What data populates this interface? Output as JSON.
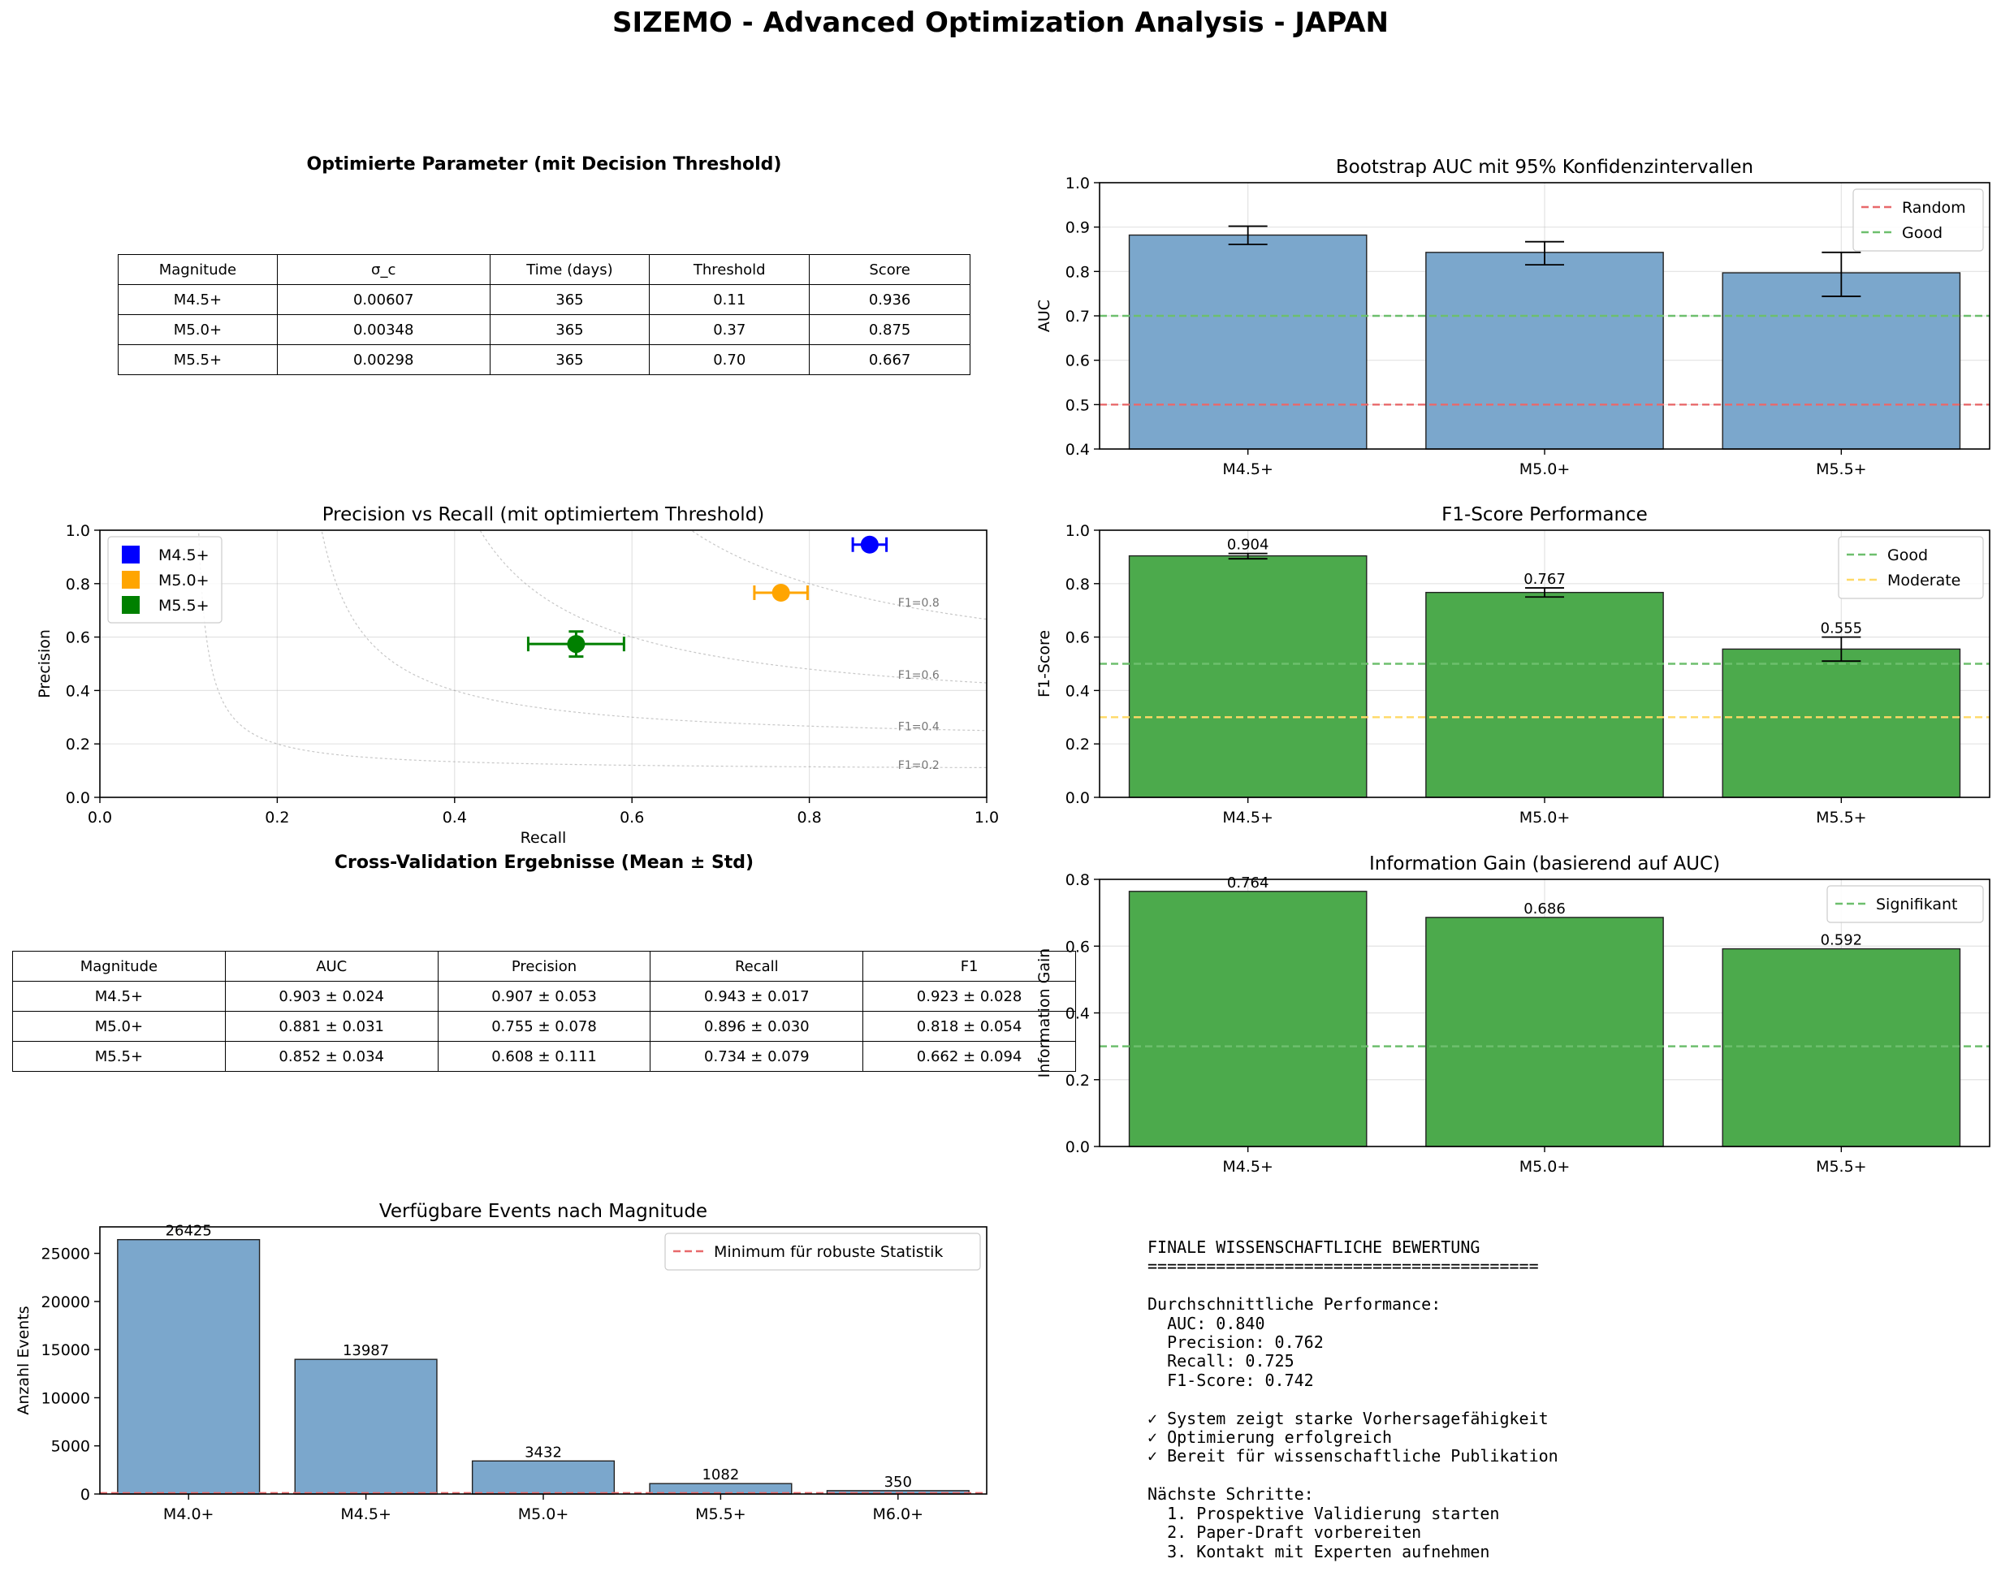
{
  "figure": {
    "title": "SIZEMO - Advanced Optimization Analysis - JAPAN"
  },
  "params_table": {
    "title": "Optimierte Parameter (mit Decision Threshold)",
    "headers": [
      "Magnitude",
      "σ_c",
      "Time (days)",
      "Threshold",
      "Score"
    ],
    "rows": [
      [
        "M4.5+",
        "0.00607",
        "365",
        "0.11",
        "0.936"
      ],
      [
        "M5.0+",
        "0.00348",
        "365",
        "0.37",
        "0.875"
      ],
      [
        "M5.5+",
        "0.00298",
        "365",
        "0.70",
        "0.667"
      ]
    ]
  },
  "cv_table": {
    "title": "Cross-Validation Ergebnisse (Mean ± Std)",
    "headers": [
      "Magnitude",
      "AUC",
      "Precision",
      "Recall",
      "F1"
    ],
    "rows": [
      [
        "M4.5+",
        "0.903 ± 0.024",
        "0.907 ± 0.053",
        "0.943 ± 0.017",
        "0.923 ± 0.028"
      ],
      [
        "M5.0+",
        "0.881 ± 0.031",
        "0.755 ± 0.078",
        "0.896 ± 0.030",
        "0.818 ± 0.054"
      ],
      [
        "M5.5+",
        "0.852 ± 0.034",
        "0.608 ± 0.111",
        "0.734 ± 0.079",
        "0.662 ± 0.094"
      ]
    ]
  },
  "chart_data": [
    {
      "id": "auc",
      "type": "bar",
      "title": "Bootstrap AUC mit 95% Konfidenzintervallen",
      "ylabel": "AUC",
      "categories": [
        "M4.5+",
        "M5.0+",
        "M5.5+"
      ],
      "values": [
        0.882,
        0.843,
        0.797
      ],
      "error_low": [
        0.861,
        0.815,
        0.744
      ],
      "error_high": [
        0.902,
        0.867,
        0.843
      ],
      "ylim": [
        0.4,
        1.0
      ],
      "yticks": [
        "0.4",
        "0.5",
        "0.6",
        "0.7",
        "0.8",
        "0.9",
        "1.0"
      ],
      "bar_color": "#7ba7cc",
      "reference_lines": [
        {
          "label": "Random",
          "y": 0.5,
          "color": "#e8696b"
        },
        {
          "label": "Good",
          "y": 0.7,
          "color": "#6dbf6d"
        }
      ],
      "legend": "top-right",
      "grid": true
    },
    {
      "id": "pr",
      "type": "scatter",
      "title": "Precision vs Recall (mit optimiertem Threshold)",
      "xlabel": "Recall",
      "ylabel": "Precision",
      "xlim": [
        0,
        1
      ],
      "ylim": [
        0,
        1
      ],
      "xticks": [
        "0.0",
        "0.2",
        "0.4",
        "0.6",
        "0.8",
        "1.0"
      ],
      "yticks": [
        "0.0",
        "0.2",
        "0.4",
        "0.6",
        "0.8",
        "1.0"
      ],
      "points": [
        {
          "name": "M4.5+",
          "x": 0.868,
          "y": 0.946,
          "xerr": 0.019,
          "yerr": 0.008,
          "color": "#0000ff"
        },
        {
          "name": "M5.0+",
          "x": 0.768,
          "y": 0.766,
          "xerr": 0.03,
          "yerr": 0.012,
          "color": "#ffa500"
        },
        {
          "name": "M5.5+",
          "x": 0.537,
          "y": 0.574,
          "xerr": 0.054,
          "yerr": 0.047,
          "color": "#008000"
        }
      ],
      "f1_contours": [
        {
          "label": "F1=0.8",
          "f1": 0.8
        },
        {
          "label": "F1=0.6",
          "f1": 0.6
        },
        {
          "label": "F1=0.4",
          "f1": 0.4
        },
        {
          "label": "F1=0.2",
          "f1": 0.2
        }
      ],
      "legend": "top-left",
      "grid": true
    },
    {
      "id": "f1",
      "type": "bar",
      "title": "F1-Score Performance",
      "ylabel": "F1-Score",
      "categories": [
        "M4.5+",
        "M5.0+",
        "M5.5+"
      ],
      "values": [
        0.904,
        0.767,
        0.555
      ],
      "value_labels": [
        "0.904",
        "0.767",
        "0.555"
      ],
      "error_low": [
        0.893,
        0.75,
        0.51
      ],
      "error_high": [
        0.913,
        0.784,
        0.6
      ],
      "ylim": [
        0,
        1.0
      ],
      "yticks": [
        "0.0",
        "0.2",
        "0.4",
        "0.6",
        "0.8",
        "1.0"
      ],
      "bar_color": "#4caa4c",
      "reference_lines": [
        {
          "label": "Good",
          "y": 0.5,
          "color": "#6dbf6d"
        },
        {
          "label": "Moderate",
          "y": 0.3,
          "color": "#ffd966"
        }
      ],
      "legend": "top-right",
      "grid": true
    },
    {
      "id": "ig",
      "type": "bar",
      "title": "Information Gain (basierend auf AUC)",
      "ylabel": "Information Gain",
      "categories": [
        "M4.5+",
        "M5.0+",
        "M5.5+"
      ],
      "values": [
        0.764,
        0.686,
        0.592
      ],
      "value_labels": [
        "0.764",
        "0.686",
        "0.592"
      ],
      "ylim": [
        0,
        0.8
      ],
      "yticks": [
        "0.0",
        "0.2",
        "0.4",
        "0.6",
        "0.8"
      ],
      "bar_color": "#4caa4c",
      "reference_lines": [
        {
          "label": "Signifikant",
          "y": 0.3,
          "color": "#6dbf6d"
        }
      ],
      "legend": "top-right",
      "grid": true
    },
    {
      "id": "events",
      "type": "bar",
      "title": "Verfügbare Events nach Magnitude",
      "ylabel": "Anzahl Events",
      "categories": [
        "M4.0+",
        "M4.5+",
        "M5.0+",
        "M5.5+",
        "M6.0+"
      ],
      "values": [
        26425,
        13987,
        3432,
        1082,
        350
      ],
      "value_labels": [
        "26425",
        "13987",
        "3432",
        "1082",
        "350"
      ],
      "ylim": [
        0,
        27750
      ],
      "yticks": [
        "0",
        "5000",
        "10000",
        "15000",
        "20000",
        "25000"
      ],
      "ytick_values": [
        0,
        5000,
        10000,
        15000,
        20000,
        25000
      ],
      "bar_color": "#7ba7cc",
      "reference_lines": [
        {
          "label": "Minimum für robuste Statistik",
          "y": 100,
          "color": "#e8696b"
        }
      ],
      "legend": "top-right",
      "grid": false
    }
  ],
  "summary": {
    "lines": [
      "FINALE WISSENSCHAFTLICHE BEWERTUNG",
      "========================================",
      "",
      "Durchschnittliche Performance:",
      "  AUC: 0.840",
      "  Precision: 0.762",
      "  Recall: 0.725",
      "  F1-Score: 0.742",
      "",
      "✓ System zeigt starke Vorhersagefähigkeit",
      "✓ Optimierung erfolgreich",
      "✓ Bereit für wissenschaftliche Publikation",
      "",
      "Nächste Schritte:",
      "  1. Prospektive Validierung starten",
      "  2. Paper-Draft vorbereiten",
      "  3. Kontakt mit Experten aufnehmen"
    ]
  }
}
